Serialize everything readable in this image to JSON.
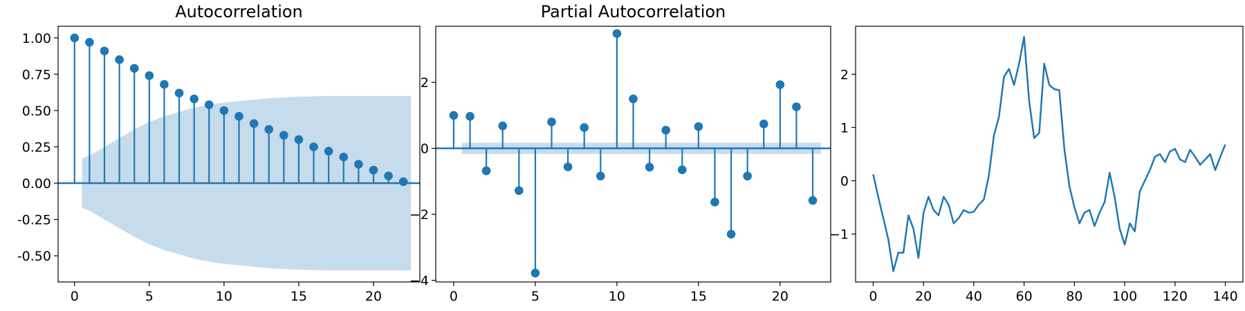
{
  "colors": {
    "line": "#1f77b4",
    "band": "#c6dcec",
    "axis": "#000000"
  },
  "chart_data": [
    {
      "type": "stem",
      "title": "Autocorrelation",
      "xlim": [
        -1.1,
        23.1
      ],
      "ylim": [
        -0.68,
        1.08
      ],
      "xticks": [
        "0",
        "5",
        "10",
        "15",
        "20"
      ],
      "yticks": [
        "-0.50",
        "-0.25",
        "0.00",
        "0.25",
        "0.50",
        "0.75",
        "1.00"
      ],
      "x": [
        0,
        1,
        2,
        3,
        4,
        5,
        6,
        7,
        8,
        9,
        10,
        11,
        12,
        13,
        14,
        15,
        16,
        17,
        18,
        19,
        20,
        21,
        22
      ],
      "values": [
        1.0,
        0.97,
        0.91,
        0.85,
        0.79,
        0.74,
        0.68,
        0.62,
        0.58,
        0.54,
        0.5,
        0.46,
        0.41,
        0.37,
        0.33,
        0.3,
        0.25,
        0.22,
        0.18,
        0.13,
        0.09,
        0.05,
        0.01
      ],
      "confidence_band": {
        "x": [
          0.5,
          1,
          2,
          3,
          4,
          5,
          6,
          7,
          8,
          9,
          10,
          11,
          12,
          13,
          14,
          15,
          16,
          17,
          18,
          19,
          20,
          21,
          22,
          22.5
        ],
        "upper": [
          0.17,
          0.19,
          0.25,
          0.31,
          0.37,
          0.42,
          0.46,
          0.49,
          0.52,
          0.54,
          0.555,
          0.565,
          0.575,
          0.585,
          0.59,
          0.595,
          0.598,
          0.6,
          0.6,
          0.6,
          0.6,
          0.6,
          0.6,
          0.6
        ]
      }
    },
    {
      "type": "stem",
      "title": "Partial Autocorrelation",
      "xlim": [
        -1.1,
        23.1
      ],
      "ylim": [
        -4.05,
        3.7
      ],
      "xticks": [
        "0",
        "5",
        "10",
        "15",
        "20"
      ],
      "yticks": [
        "−4",
        "−2",
        "0",
        "2"
      ],
      "x": [
        0,
        1,
        2,
        3,
        4,
        5,
        6,
        7,
        8,
        9,
        10,
        11,
        12,
        13,
        14,
        15,
        16,
        17,
        18,
        19,
        20,
        21,
        22
      ],
      "values": [
        1.0,
        0.97,
        -0.68,
        0.68,
        -1.28,
        -3.78,
        0.8,
        -0.56,
        0.63,
        -0.84,
        3.48,
        1.5,
        -0.57,
        0.55,
        -0.65,
        0.66,
        -1.63,
        -2.6,
        -0.84,
        0.74,
        1.93,
        1.26,
        -1.58
      ],
      "confidence_band": {
        "x": [
          0.5,
          22.5
        ],
        "upper": [
          0.17,
          0.17
        ]
      }
    },
    {
      "type": "line",
      "title": "",
      "xlim": [
        -7,
        147
      ],
      "ylim": [
        -1.9,
        2.9
      ],
      "xticks": [
        "0",
        "20",
        "40",
        "60",
        "80",
        "100",
        "120",
        "140"
      ],
      "yticks": [
        "−1",
        "0",
        "1",
        "2"
      ],
      "x": [
        0,
        2,
        4,
        6,
        8,
        10,
        12,
        14,
        16,
        18,
        20,
        22,
        24,
        26,
        28,
        30,
        32,
        34,
        36,
        38,
        40,
        42,
        44,
        46,
        48,
        50,
        52,
        54,
        56,
        58,
        60,
        62,
        64,
        66,
        68,
        70,
        72,
        74,
        76,
        78,
        80,
        82,
        84,
        86,
        88,
        90,
        92,
        94,
        96,
        98,
        100,
        102,
        104,
        106,
        108,
        110,
        112,
        114,
        116,
        118,
        120,
        122,
        124,
        126,
        128,
        130,
        132,
        134,
        136,
        138,
        140
      ],
      "values": [
        0.12,
        -0.3,
        -0.7,
        -1.1,
        -1.7,
        -1.35,
        -1.35,
        -0.65,
        -0.9,
        -1.45,
        -0.6,
        -0.3,
        -0.55,
        -0.65,
        -0.3,
        -0.45,
        -0.8,
        -0.7,
        -0.55,
        -0.6,
        -0.58,
        -0.45,
        -0.35,
        0.1,
        0.85,
        1.2,
        1.95,
        2.1,
        1.8,
        2.2,
        2.7,
        1.5,
        0.8,
        0.9,
        2.2,
        1.8,
        1.72,
        1.7,
        0.6,
        -0.1,
        -0.5,
        -0.8,
        -0.6,
        -0.55,
        -0.85,
        -0.6,
        -0.4,
        0.15,
        -0.3,
        -0.9,
        -1.2,
        -0.8,
        -0.95,
        -0.2,
        0.0,
        0.2,
        0.45,
        0.5,
        0.35,
        0.55,
        0.6,
        0.4,
        0.35,
        0.58,
        0.45,
        0.3,
        0.4,
        0.5,
        0.2,
        0.45,
        0.68
      ]
    }
  ]
}
